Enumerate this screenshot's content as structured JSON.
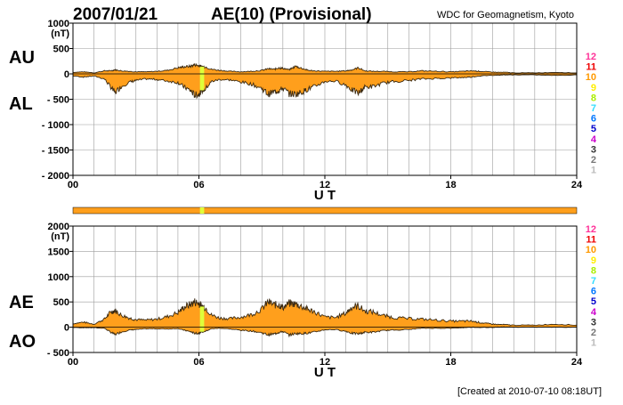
{
  "header": {
    "date": "2007/01/21",
    "title": "AE(10) (Provisional)",
    "source": "WDC for Geomagnetism, Kyoto"
  },
  "footer": {
    "created": "[Created at 2010-07-10 08:18UT]"
  },
  "colors": {
    "fill": "#ff9f1c",
    "outline": "#3b2a12",
    "grid": "#9c9c9c",
    "quality_bar": "#ff9f1c",
    "quality_highlight": "#dfff3a"
  },
  "quality_scale": [
    {
      "label": "12",
      "color": "#ff3399"
    },
    {
      "label": "11",
      "color": "#ee0000"
    },
    {
      "label": "10",
      "color": "#ff9900"
    },
    {
      "label": "9",
      "color": "#ffee00"
    },
    {
      "label": "8",
      "color": "#aaee00"
    },
    {
      "label": "7",
      "color": "#33ddff"
    },
    {
      "label": "6",
      "color": "#0077ff"
    },
    {
      "label": "5",
      "color": "#0000cc"
    },
    {
      "label": "4",
      "color": "#cc00cc"
    },
    {
      "label": "3",
      "color": "#333333"
    },
    {
      "label": "2",
      "color": "#777777"
    },
    {
      "label": "1",
      "color": "#bbbbbb"
    }
  ],
  "quality_bar_data": {
    "base_level": "10",
    "highlight_level": "9",
    "highlight_ut": [
      6.05,
      6.25
    ]
  },
  "chart_data": [
    {
      "type": "area",
      "name": "AU-AL",
      "upper_label": "AU",
      "lower_label": "AL",
      "unit": "(nT)",
      "xlabel": "U T",
      "xlim": [
        0,
        24
      ],
      "xticks": [
        "00",
        "06",
        "12",
        "18",
        "24"
      ],
      "xtick_values": [
        0,
        6,
        12,
        18,
        24
      ],
      "ylim": [
        -2000,
        1000
      ],
      "yticks": [
        "1000",
        "500",
        "0",
        "- 500",
        "- 1000",
        "- 1500",
        "- 2000"
      ],
      "ytick_values": [
        1000,
        500,
        0,
        -500,
        -1000,
        -1500,
        -2000
      ],
      "grid": true,
      "highlight_ut": [
        6.05,
        6.25
      ],
      "x": [
        0,
        0.5,
        1,
        1.5,
        1.8,
        2.0,
        2.3,
        2.7,
        3,
        3.5,
        4,
        4.5,
        5,
        5.3,
        5.6,
        5.8,
        6.0,
        6.1,
        6.3,
        6.6,
        7,
        7.5,
        8,
        8.5,
        9,
        9.3,
        9.6,
        9.8,
        10,
        10.3,
        10.6,
        10.9,
        11.2,
        11.5,
        12,
        12.5,
        13,
        13.3,
        13.6,
        13.9,
        14.3,
        14.8,
        15.3,
        16,
        16.6,
        17.3,
        18,
        18.6,
        19,
        19.4,
        19.8,
        20.2,
        20.6,
        21,
        22,
        23,
        24
      ],
      "au": [
        30,
        40,
        20,
        60,
        60,
        80,
        60,
        50,
        40,
        40,
        50,
        70,
        120,
        140,
        150,
        180,
        160,
        150,
        140,
        90,
        70,
        50,
        40,
        50,
        70,
        100,
        90,
        120,
        110,
        80,
        150,
        110,
        70,
        60,
        50,
        50,
        60,
        80,
        120,
        60,
        50,
        50,
        40,
        40,
        60,
        50,
        40,
        50,
        60,
        50,
        40,
        30,
        30,
        20,
        20,
        30,
        20
      ],
      "al": [
        -40,
        -60,
        -40,
        -100,
        -260,
        -370,
        -250,
        -160,
        -130,
        -100,
        -110,
        -140,
        -170,
        -260,
        -330,
        -420,
        -400,
        -340,
        -300,
        -150,
        -110,
        -120,
        -160,
        -200,
        -290,
        -400,
        -350,
        -330,
        -280,
        -390,
        -400,
        -360,
        -300,
        -250,
        -150,
        -140,
        -220,
        -320,
        -380,
        -260,
        -250,
        -180,
        -150,
        -130,
        -100,
        -90,
        -80,
        -70,
        -60,
        -40,
        -30,
        -25,
        -20,
        -20,
        -20,
        -30,
        -20
      ]
    },
    {
      "type": "area",
      "name": "AE-AO",
      "upper_label": "AE",
      "lower_label": "AO",
      "unit": "(nT)",
      "xlabel": "U T",
      "xlim": [
        0,
        24
      ],
      "xticks": [
        "00",
        "06",
        "12",
        "18",
        "24"
      ],
      "xtick_values": [
        0,
        6,
        12,
        18,
        24
      ],
      "ylim": [
        -500,
        2000
      ],
      "yticks": [
        "2000",
        "1500",
        "1000",
        "500",
        "0",
        "- 500"
      ],
      "ytick_values": [
        2000,
        1500,
        1000,
        500,
        0,
        -500
      ],
      "grid": true,
      "highlight_ut": [
        6.05,
        6.25
      ],
      "x": [
        0,
        0.5,
        1,
        1.5,
        1.8,
        2.0,
        2.3,
        2.7,
        3,
        3.5,
        4,
        4.5,
        5,
        5.3,
        5.6,
        5.8,
        6.0,
        6.1,
        6.3,
        6.6,
        7,
        7.5,
        8,
        8.5,
        9,
        9.3,
        9.6,
        9.8,
        10,
        10.3,
        10.6,
        10.9,
        11.2,
        11.5,
        12,
        12.5,
        13,
        13.3,
        13.6,
        13.9,
        14.3,
        14.8,
        15.3,
        16,
        16.6,
        17.3,
        18,
        18.6,
        19,
        19.4,
        19.8,
        20.2,
        20.6,
        21,
        22,
        23,
        24
      ],
      "ae": [
        70,
        100,
        60,
        160,
        300,
        330,
        240,
        180,
        150,
        140,
        160,
        210,
        290,
        400,
        450,
        500,
        470,
        430,
        390,
        240,
        180,
        170,
        200,
        250,
        360,
        500,
        440,
        450,
        390,
        470,
        460,
        410,
        350,
        310,
        200,
        190,
        280,
        400,
        420,
        320,
        300,
        230,
        190,
        170,
        160,
        140,
        120,
        120,
        120,
        90,
        70,
        55,
        50,
        40,
        40,
        60,
        40
      ],
      "ao": [
        -5,
        -10,
        -10,
        -20,
        -100,
        -145,
        -95,
        -55,
        -45,
        -30,
        -30,
        -35,
        -25,
        -60,
        -90,
        -120,
        -120,
        -95,
        -80,
        -30,
        -20,
        -35,
        -60,
        -75,
        -110,
        -150,
        -130,
        -105,
        -85,
        -155,
        -125,
        -125,
        -115,
        -95,
        -50,
        -45,
        -80,
        -120,
        -130,
        -100,
        -100,
        -65,
        -55,
        -45,
        -20,
        -20,
        -20,
        -10,
        0,
        -5,
        -5,
        0,
        5,
        0,
        0,
        0,
        0
      ]
    }
  ]
}
